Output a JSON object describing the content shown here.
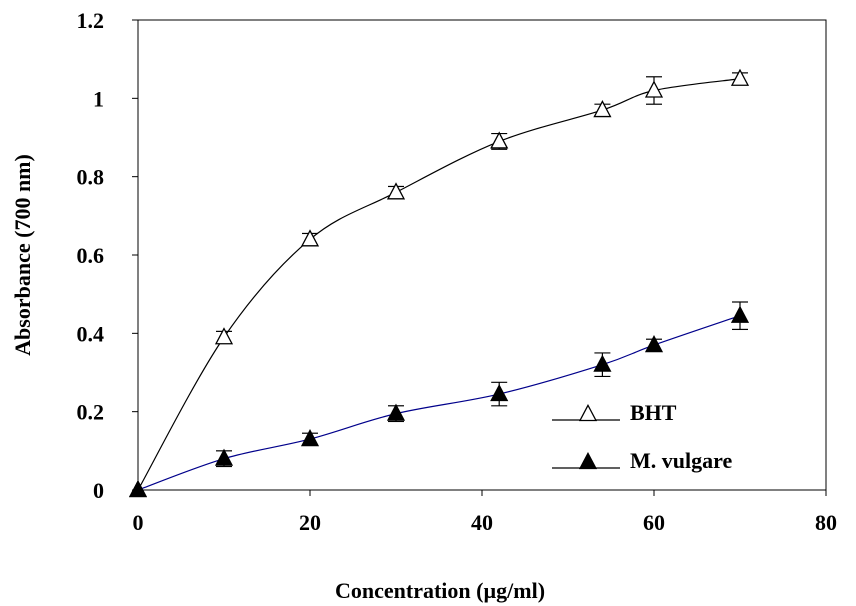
{
  "chart_data": {
    "type": "line",
    "title": "",
    "xlabel": "Concentration (µg/ml)",
    "ylabel": "Absorbance (700 nm)",
    "xlim": [
      0,
      80
    ],
    "ylim": [
      0,
      1.2
    ],
    "x_ticks": [
      "0",
      "20",
      "40",
      "60",
      "80"
    ],
    "y_ticks": [
      "0",
      "0.2",
      "0.4",
      "0.6",
      "0.8",
      "1",
      "1.2"
    ],
    "grid": false,
    "legend_position": "lower-right",
    "series": [
      {
        "name": "BHT",
        "marker": "open-triangle",
        "line_color": "#000000",
        "x": [
          0,
          10,
          20,
          30,
          42,
          54,
          60,
          70
        ],
        "y": [
          0,
          0.39,
          0.64,
          0.76,
          0.89,
          0.97,
          1.02,
          1.05
        ],
        "err": [
          0,
          0.015,
          0.015,
          0.015,
          0.02,
          0.015,
          0.035,
          0.015
        ]
      },
      {
        "name": "M. vulgare",
        "marker": "filled-triangle",
        "line_color": "#00008b",
        "x": [
          0,
          10,
          20,
          30,
          42,
          54,
          60,
          70
        ],
        "y": [
          0,
          0.08,
          0.13,
          0.195,
          0.245,
          0.32,
          0.37,
          0.445
        ],
        "err": [
          0,
          0.02,
          0.015,
          0.02,
          0.03,
          0.03,
          0.015,
          0.035
        ]
      }
    ]
  }
}
